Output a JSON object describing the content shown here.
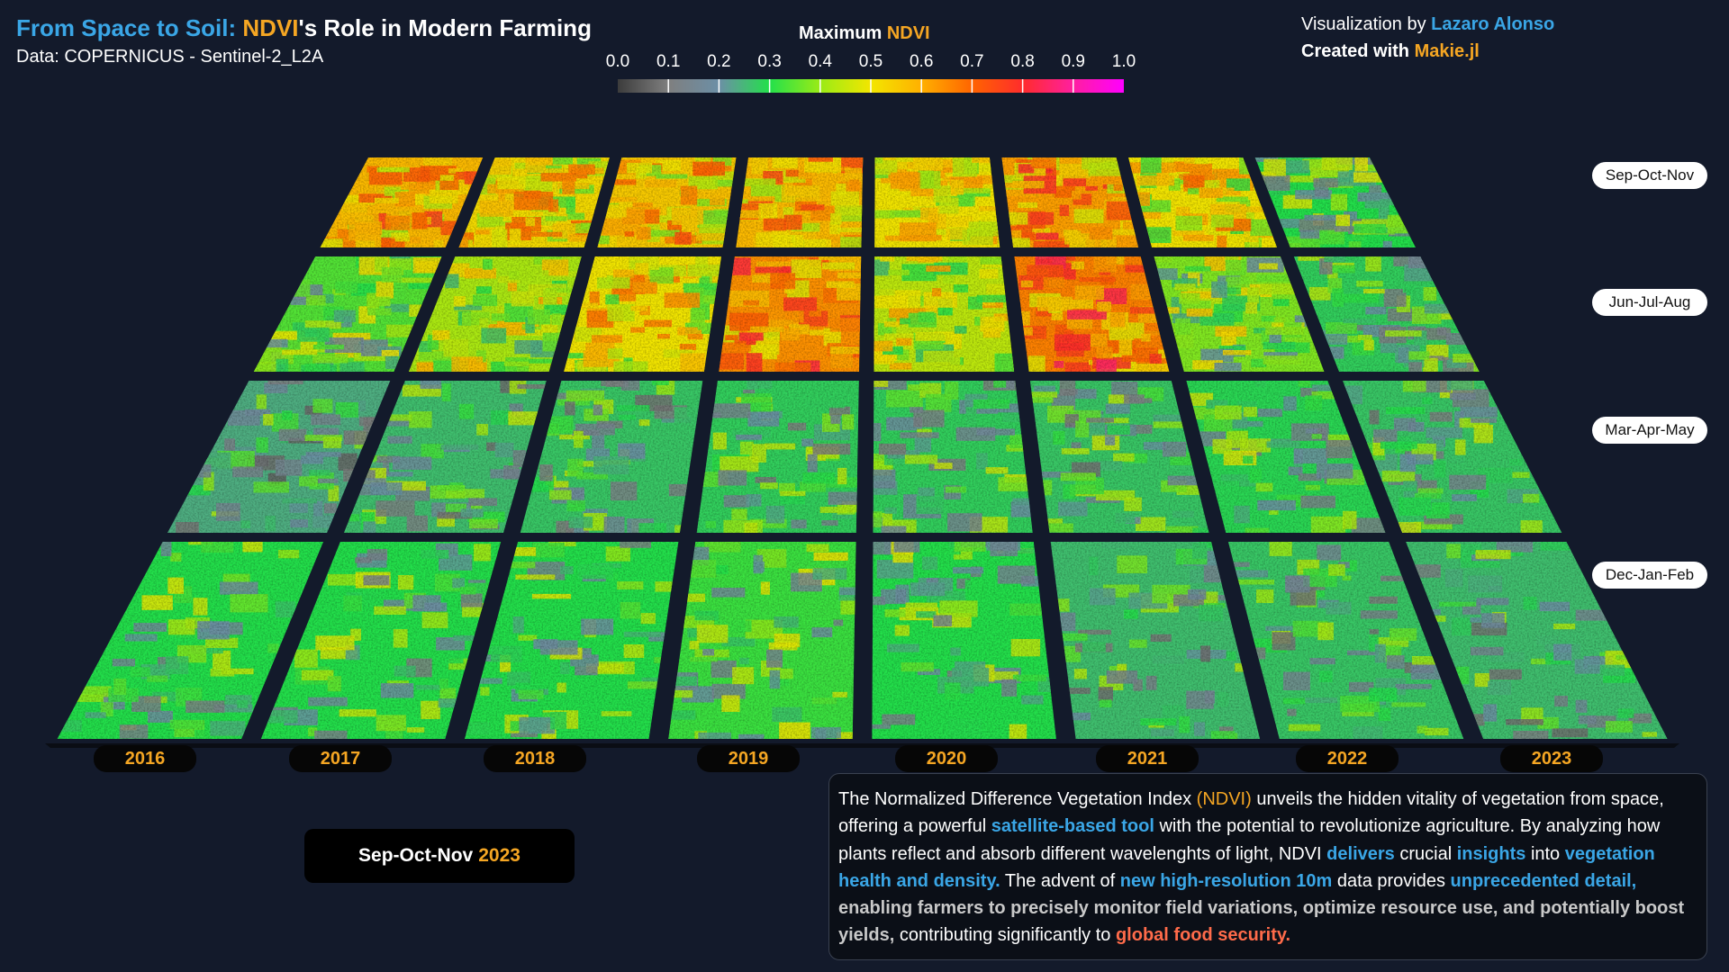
{
  "title": {
    "part1": "From Space to Soil:",
    "part2": "NDVI",
    "part3": "'s Role in Modern Farming"
  },
  "subtitle": "Data: COPERNICUS - Sentinel-2_L2A",
  "credits": {
    "line1_prefix": "Visualization by",
    "author": "Lazaro Alonso",
    "line2_prefix": "Created with",
    "tool": "Makie.jl"
  },
  "colorbar": {
    "title_prefix": "Maximum",
    "title_highlight": "NDVI",
    "ticks": [
      "0.0",
      "0.1",
      "0.2",
      "0.3",
      "0.4",
      "0.5",
      "0.6",
      "0.7",
      "0.8",
      "0.9",
      "1.0"
    ],
    "stops": [
      "#3c3c3c",
      "#7f7f7f",
      "#6c8fa6",
      "#23e04b",
      "#9aeb16",
      "#f3e600",
      "#ffb000",
      "#ff6400",
      "#ff2c2c",
      "#ff1fa0",
      "#ff00ff"
    ]
  },
  "chart_data": {
    "type": "heatmap",
    "title": "Maximum NDVI",
    "xlabel": "",
    "ylabel": "",
    "years": [
      "2016",
      "2017",
      "2018",
      "2019",
      "2020",
      "2021",
      "2022",
      "2023"
    ],
    "seasons": [
      "Sep-Oct-Nov",
      "Jun-Jul-Aug",
      "Mar-Apr-May",
      "Dec-Jan-Feb"
    ],
    "value_range": [
      0.0,
      1.0
    ],
    "mean_ndvi_estimate": [
      [
        0.58,
        0.52,
        0.55,
        0.58,
        0.5,
        0.62,
        0.5,
        0.3
      ],
      [
        0.34,
        0.42,
        0.5,
        0.64,
        0.44,
        0.66,
        0.38,
        0.28
      ],
      [
        0.24,
        0.26,
        0.27,
        0.28,
        0.28,
        0.27,
        0.29,
        0.27
      ],
      [
        0.3,
        0.3,
        0.3,
        0.32,
        0.3,
        0.26,
        0.27,
        0.26
      ]
    ]
  },
  "season_labels": [
    "Sep-Oct-Nov",
    "Jun-Jul-Aug",
    "Mar-Apr-May",
    "Dec-Jan-Feb"
  ],
  "year_labels": [
    "2016",
    "2017",
    "2018",
    "2019",
    "2020",
    "2021",
    "2022",
    "2023"
  ],
  "current_period": {
    "season": "Sep-Oct-Nov",
    "year": "2023"
  },
  "description": {
    "s1": "The Normalized Difference Vegetation Index",
    "s2": "(NDVI)",
    "s3": "unveils the hidden vitality of vegetation from space, offering a powerful",
    "s4": "satellite-based tool",
    "s5": "with the potential to revolutionize agriculture. By analyzing how plants reflect and absorb different wavelenghts of light, NDVI",
    "s6": "delivers",
    "s7": "crucial",
    "s8": "insights",
    "s9": "into",
    "s10": "vegetation health and density.",
    "s11": "The advent of",
    "s12": "new high-resolution 10m",
    "s13": "data provides",
    "s14": "unprecedented detail,",
    "s15": "enabling farmers to precisely monitor field variations, optimize resource use, and potentially boost yields,",
    "s16": "contributing significantly to",
    "s17": "global food security."
  },
  "colors": {
    "background": "#131a2b",
    "blue_accent": "#3aa6e6",
    "orange_accent": "#f5a623",
    "red_accent": "#ff6b4a"
  }
}
